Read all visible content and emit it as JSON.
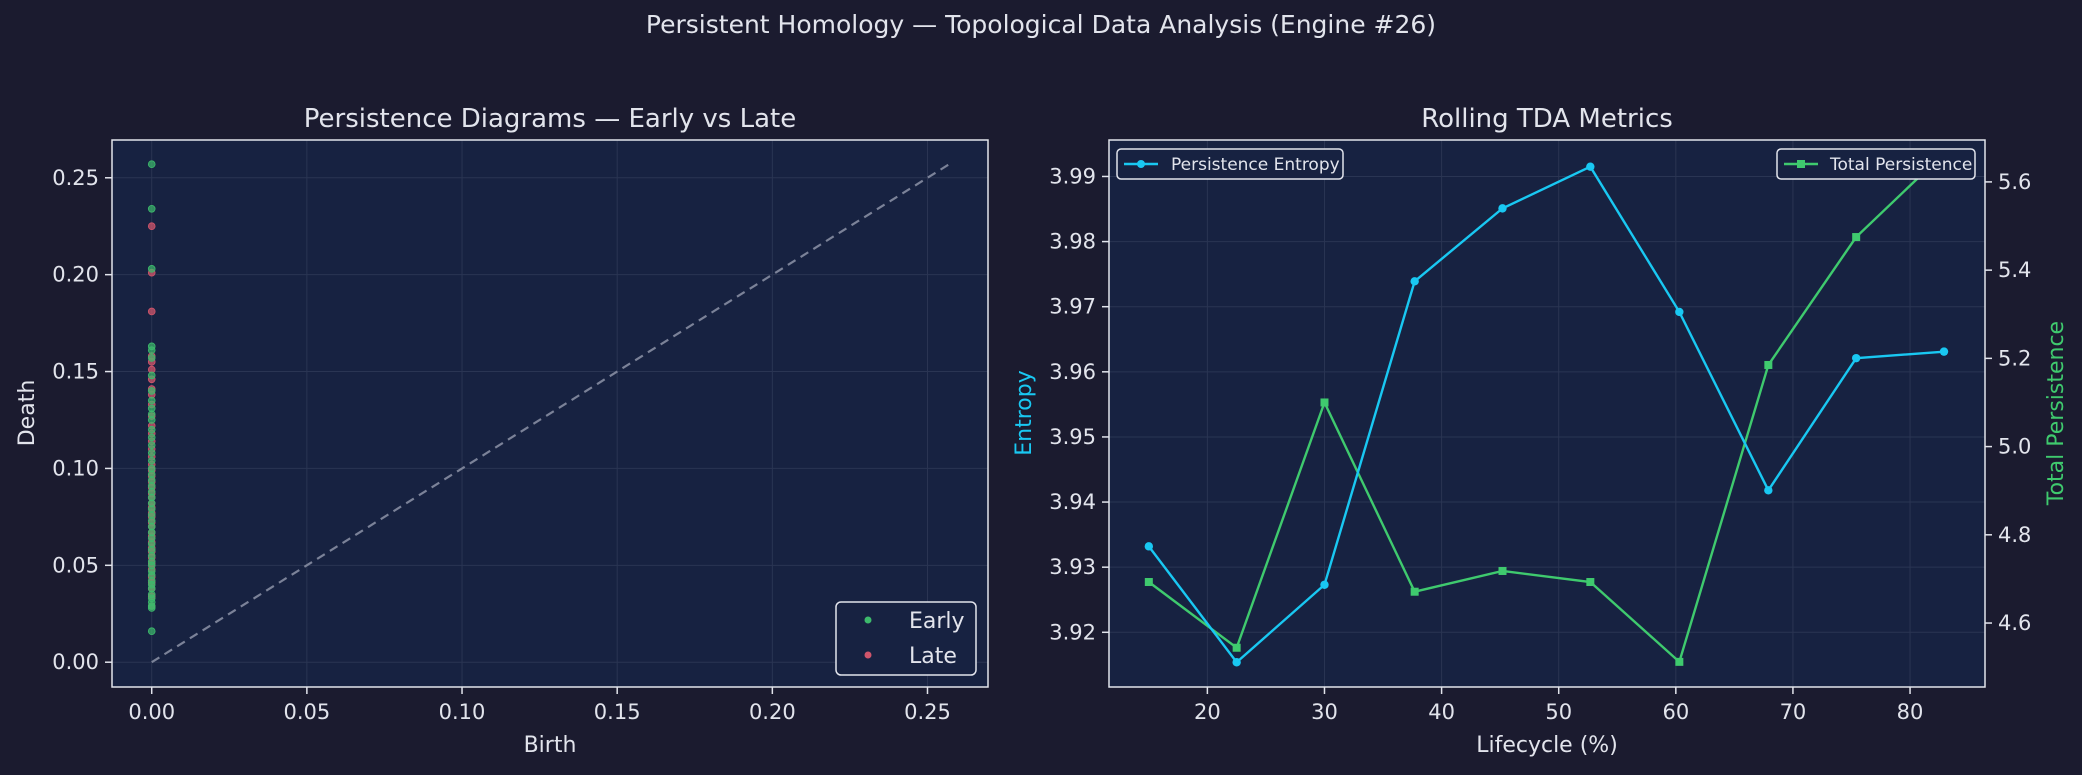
{
  "suptitle": "Persistent Homology — Topological Data Analysis (Engine #26)",
  "colors": {
    "figure_bg": "#1b1b2f",
    "axes_bg": "#172241",
    "text": "#e2e4ec",
    "grid": "#2a3553",
    "diagonal": "#7b8298",
    "early": "#3dba6c",
    "late": "#d0556b",
    "entropy": "#19c8f2",
    "total": "#3fca6e"
  },
  "chart_data": [
    {
      "type": "scatter",
      "title": "Persistence Diagrams — Early vs Late",
      "xlabel": "Birth",
      "ylabel": "Death",
      "xlim": [
        -0.0128,
        0.2695
      ],
      "ylim": [
        -0.0128,
        0.2695
      ],
      "xticks": [
        0.0,
        0.05,
        0.1,
        0.15,
        0.2,
        0.25
      ],
      "xtick_labels": [
        "0.00",
        "0.05",
        "0.10",
        "0.15",
        "0.20",
        "0.25"
      ],
      "yticks": [
        0.0,
        0.05,
        0.1,
        0.15,
        0.2,
        0.25
      ],
      "ytick_labels": [
        "0.00",
        "0.05",
        "0.10",
        "0.15",
        "0.20",
        "0.25"
      ],
      "grid": true,
      "legend_position": "bottom-right",
      "diagonal": {
        "from": [
          0,
          0
        ],
        "to": [
          0.257,
          0.257
        ],
        "style": "dashed"
      },
      "series": [
        {
          "name": "Early",
          "x": [
            0,
            0,
            0,
            0,
            0,
            0,
            0,
            0,
            0,
            0,
            0,
            0,
            0,
            0,
            0,
            0,
            0,
            0,
            0,
            0,
            0,
            0,
            0,
            0,
            0,
            0,
            0,
            0,
            0,
            0,
            0,
            0,
            0,
            0,
            0,
            0,
            0,
            0,
            0,
            0,
            0,
            0,
            0,
            0,
            0,
            0
          ],
          "y": [
            0.257,
            0.234,
            0.203,
            0.163,
            0.161,
            0.157,
            0.148,
            0.14,
            0.135,
            0.131,
            0.128,
            0.125,
            0.12,
            0.116,
            0.112,
            0.108,
            0.104,
            0.1,
            0.097,
            0.094,
            0.091,
            0.088,
            0.085,
            0.082,
            0.079,
            0.076,
            0.073,
            0.07,
            0.067,
            0.064,
            0.061,
            0.058,
            0.055,
            0.052,
            0.05,
            0.047,
            0.045,
            0.042,
            0.04,
            0.038,
            0.035,
            0.033,
            0.031,
            0.029,
            0.028,
            0.016
          ]
        },
        {
          "name": "Late",
          "x": [
            0,
            0,
            0,
            0,
            0,
            0,
            0,
            0,
            0,
            0,
            0,
            0,
            0,
            0,
            0,
            0,
            0,
            0,
            0,
            0,
            0,
            0,
            0,
            0,
            0,
            0,
            0,
            0,
            0,
            0,
            0,
            0,
            0,
            0,
            0,
            0,
            0,
            0,
            0,
            0,
            0,
            0
          ],
          "y": [
            0.225,
            0.201,
            0.181,
            0.158,
            0.155,
            0.151,
            0.146,
            0.141,
            0.138,
            0.133,
            0.127,
            0.122,
            0.118,
            0.114,
            0.11,
            0.106,
            0.102,
            0.099,
            0.096,
            0.093,
            0.09,
            0.087,
            0.085,
            0.082,
            0.08,
            0.077,
            0.075,
            0.072,
            0.07,
            0.067,
            0.065,
            0.062,
            0.059,
            0.057,
            0.054,
            0.051,
            0.048,
            0.044,
            0.041,
            0.038,
            0.034,
            0.029
          ]
        }
      ]
    },
    {
      "type": "line",
      "title": "Rolling TDA Metrics",
      "xlabel": "Lifecycle (%)",
      "ylabel": "Entropy",
      "y2label": "Total Persistence",
      "xlim": [
        11.6,
        86.4
      ],
      "ylim": [
        3.9116,
        3.9956
      ],
      "y2lim": [
        4.455,
        5.695
      ],
      "xticks": [
        20,
        30,
        40,
        50,
        60,
        70,
        80
      ],
      "xtick_labels": [
        "20",
        "30",
        "40",
        "50",
        "60",
        "70",
        "80"
      ],
      "yticks": [
        3.92,
        3.93,
        3.94,
        3.95,
        3.96,
        3.97,
        3.98,
        3.99
      ],
      "ytick_labels": [
        "3.92",
        "3.93",
        "3.94",
        "3.95",
        "3.96",
        "3.97",
        "3.98",
        "3.99"
      ],
      "y2ticks": [
        4.6,
        4.8,
        5.0,
        5.2,
        5.4,
        5.6
      ],
      "y2tick_labels": [
        "4.6",
        "4.8",
        "5.0",
        "5.2",
        "5.4",
        "5.6"
      ],
      "grid": true,
      "x": [
        15,
        22.5,
        30,
        37.7,
        45.2,
        52.7,
        60.3,
        67.9,
        75.4,
        82.9
      ],
      "series": [
        {
          "name": "Persistence Entropy",
          "axis": "left",
          "marker": "circle",
          "legend_position": "top-left",
          "values": [
            3.9332,
            3.9154,
            3.9273,
            3.9739,
            3.9851,
            3.9915,
            3.9692,
            3.9418,
            3.9621,
            3.9631
          ]
        },
        {
          "name": "Total Persistence",
          "axis": "right",
          "marker": "square",
          "legend_position": "top-right",
          "values": [
            4.693,
            4.544,
            5.1,
            4.671,
            4.718,
            4.693,
            4.512,
            5.185,
            5.475,
            5.665
          ]
        }
      ]
    }
  ]
}
